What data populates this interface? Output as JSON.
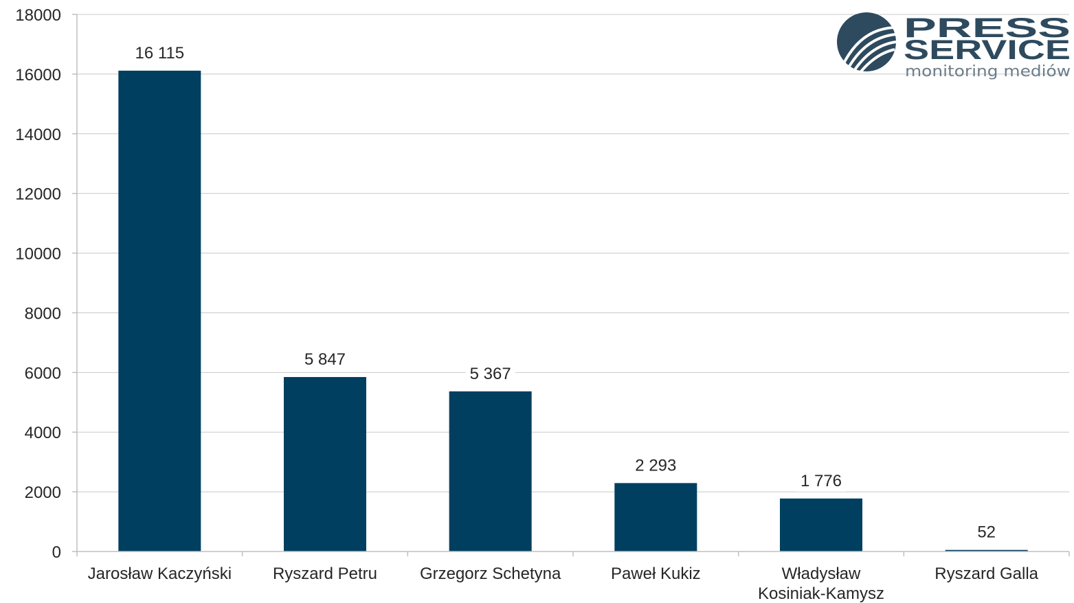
{
  "logo": {
    "line1": "PRESS",
    "line2": "SERVICE",
    "tagline": "monitoring mediów"
  },
  "colors": {
    "bar": "#003f5f",
    "grid": "#c8c8c8",
    "axis": "#bfbfbf",
    "logo": "#2e4a5e"
  },
  "chart_data": {
    "type": "bar",
    "categories": [
      [
        "Jarosław Kaczyński"
      ],
      [
        "Ryszard Petru"
      ],
      [
        "Grzegorz Schetyna"
      ],
      [
        "Paweł Kukiz"
      ],
      [
        "Władysław",
        "Kosiniak-Kamysz"
      ],
      [
        "Ryszard Galla"
      ]
    ],
    "values": [
      16115,
      5847,
      5367,
      2293,
      1776,
      52
    ],
    "data_labels": [
      "16 115",
      "5 847",
      "5 367",
      "2 293",
      "1 776",
      "52"
    ],
    "yticks": [
      "0",
      "2000",
      "4000",
      "6000",
      "8000",
      "10000",
      "12000",
      "14000",
      "16000",
      "18000"
    ],
    "ylim": [
      0,
      18000
    ],
    "grid": true,
    "legend": "none"
  }
}
